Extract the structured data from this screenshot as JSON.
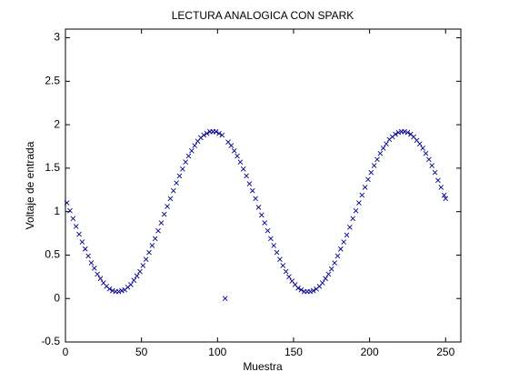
{
  "chart_data": {
    "type": "scatter",
    "title": "LECTURA ANALOGICA CON SPARK",
    "x_label": "Muestra",
    "y_label": "Voltaje de entrada",
    "marker": "x",
    "color": "#00008b",
    "x": [
      1,
      3,
      5,
      7,
      9,
      11,
      13,
      15,
      17,
      19,
      21,
      23,
      25,
      27,
      29,
      31,
      33,
      35,
      37,
      39,
      41,
      43,
      45,
      47,
      49,
      51,
      53,
      55,
      57,
      59,
      61,
      63,
      65,
      67,
      69,
      71,
      73,
      75,
      77,
      79,
      81,
      83,
      85,
      87,
      89,
      91,
      93,
      95,
      97,
      99,
      101,
      103,
      105,
      107,
      109,
      111,
      113,
      115,
      117,
      119,
      121,
      123,
      125,
      127,
      129,
      131,
      133,
      135,
      137,
      139,
      141,
      143,
      145,
      147,
      149,
      151,
      153,
      155,
      157,
      159,
      161,
      163,
      165,
      167,
      169,
      171,
      173,
      175,
      177,
      179,
      181,
      183,
      185,
      187,
      189,
      191,
      193,
      195,
      197,
      199,
      201,
      203,
      205,
      207,
      209,
      211,
      213,
      215,
      217,
      219,
      221,
      223,
      225,
      227,
      229,
      231,
      233,
      235,
      237,
      239,
      241,
      243,
      245,
      247,
      249,
      250
    ],
    "values": [
      1.1,
      1.01,
      0.92,
      0.83,
      0.74,
      0.65,
      0.57,
      0.49,
      0.41,
      0.35,
      0.28,
      0.23,
      0.18,
      0.14,
      0.11,
      0.09,
      0.08,
      0.08,
      0.09,
      0.1,
      0.13,
      0.16,
      0.21,
      0.26,
      0.31,
      0.38,
      0.45,
      0.53,
      0.61,
      0.69,
      0.78,
      0.87,
      0.97,
      1.06,
      1.15,
      1.24,
      1.33,
      1.41,
      1.49,
      1.57,
      1.64,
      1.7,
      1.76,
      1.81,
      1.85,
      1.88,
      1.9,
      1.92,
      1.92,
      1.92,
      1.9,
      1.88,
      0,
      1.8,
      1.76,
      1.7,
      1.64,
      1.57,
      1.49,
      1.41,
      1.32,
      1.24,
      1.15,
      1.05,
      0.96,
      0.87,
      0.78,
      0.69,
      0.61,
      0.53,
      0.45,
      0.38,
      0.31,
      0.25,
      0.2,
      0.16,
      0.12,
      0.1,
      0.08,
      0.08,
      0.08,
      0.09,
      0.11,
      0.14,
      0.18,
      0.23,
      0.28,
      0.34,
      0.41,
      0.49,
      0.57,
      0.65,
      0.73,
      0.82,
      0.92,
      1.01,
      1.1,
      1.19,
      1.28,
      1.37,
      1.45,
      1.53,
      1.6,
      1.67,
      1.73,
      1.78,
      1.83,
      1.86,
      1.89,
      1.91,
      1.92,
      1.92,
      1.91,
      1.89,
      1.86,
      1.82,
      1.78,
      1.73,
      1.67,
      1.6,
      1.53,
      1.45,
      1.36,
      1.28,
      1.19,
      1.15
    ],
    "xlim": [
      0,
      260
    ],
    "xticks": [
      0,
      50,
      100,
      150,
      200,
      250
    ],
    "ylim": [
      -0.5,
      3.1
    ],
    "yticks": [
      -0.5,
      0,
      0.5,
      1,
      1.5,
      2,
      2.5,
      3
    ],
    "grid": false
  }
}
